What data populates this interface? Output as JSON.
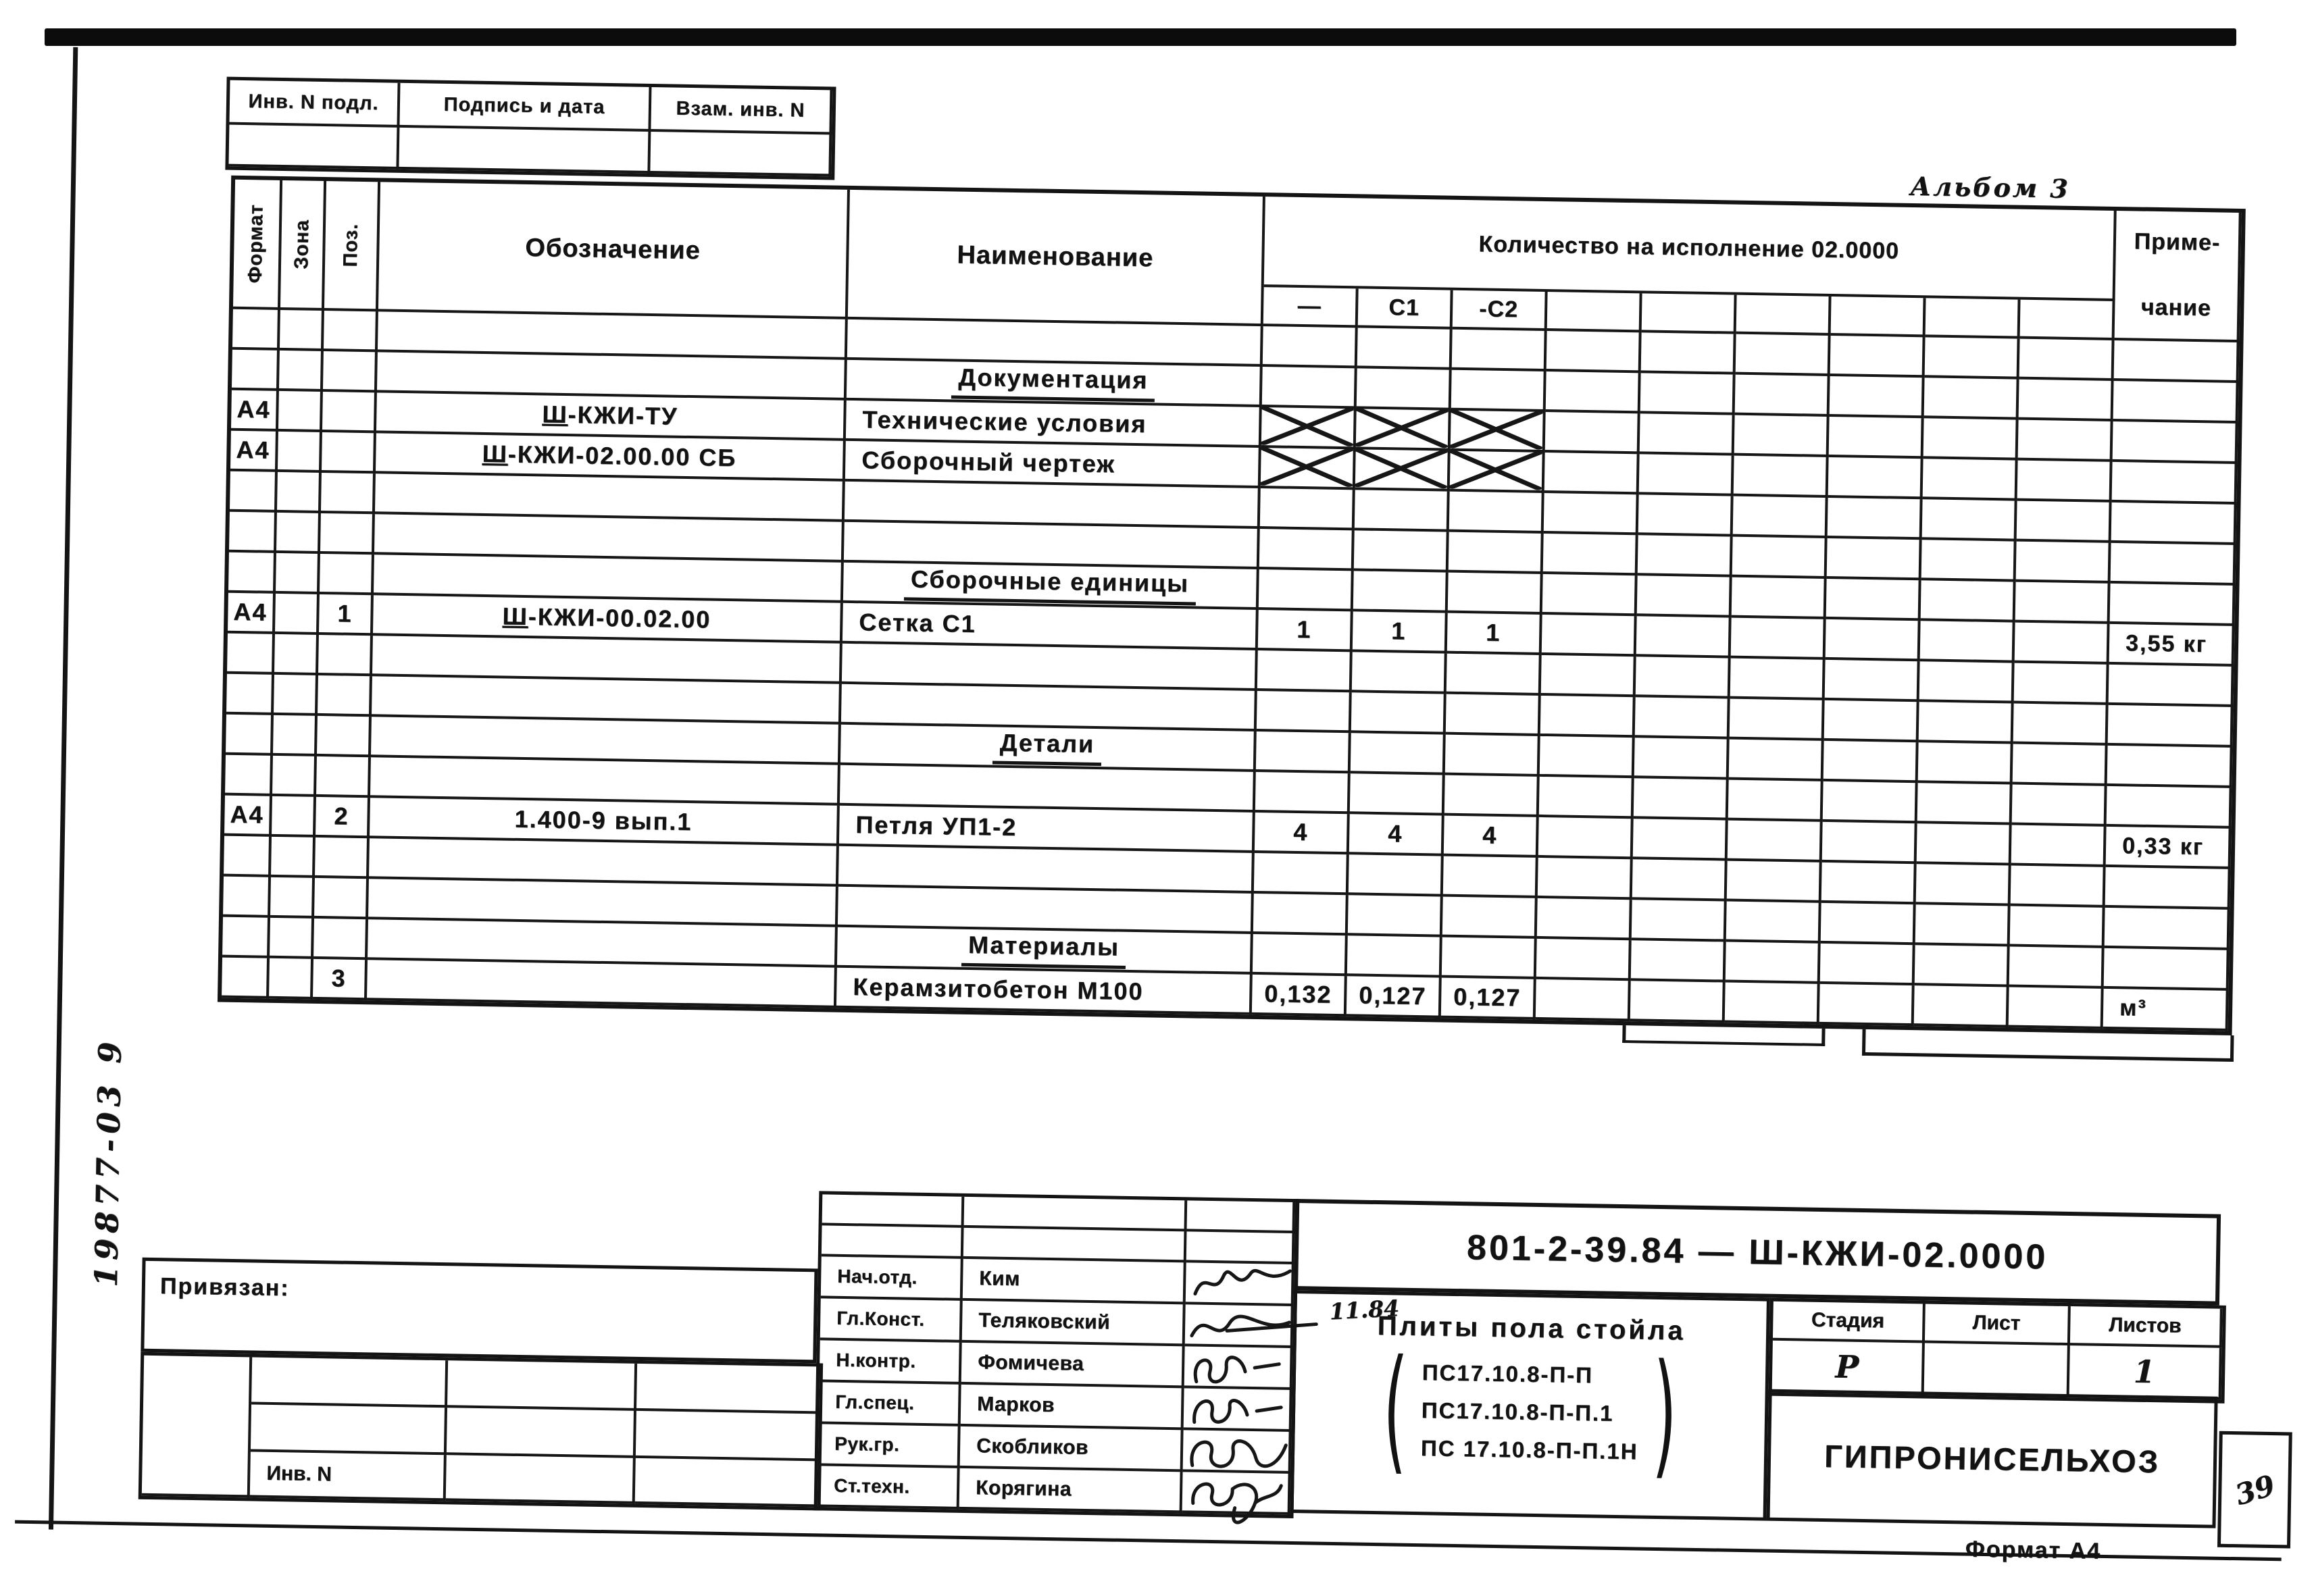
{
  "page": {
    "margin_note": "19877-03  9",
    "album_note": "Альбом 3",
    "format_note": "Формат А4",
    "corner_note": "39"
  },
  "inv_strip": {
    "cells": [
      "Инв. N подл.",
      "Подпись и дата",
      "Взам. инв. N"
    ]
  },
  "spec_table": {
    "headers": {
      "format": "Формат",
      "zone": "Зона",
      "pos": "Поз.",
      "designation": "Обозначение",
      "name": "Наименование",
      "quantity": "Количество на исполнение  02.0000",
      "qty_subcols": [
        "—",
        "С1",
        "-С2",
        "",
        "",
        "",
        "",
        "",
        ""
      ],
      "note_line1": "Приме-",
      "note_line2": "чание"
    },
    "rows": [
      {
        "type": "empty"
      },
      {
        "type": "section",
        "name": "Документация"
      },
      {
        "type": "item",
        "format": "А4",
        "zone": "",
        "pos": "",
        "designation": "Ш-КЖИ-ТУ",
        "name": "Технические условия",
        "qty": [
          "X",
          "X",
          "X",
          "",
          "",
          "",
          "",
          "",
          ""
        ],
        "note": ""
      },
      {
        "type": "item",
        "format": "А4",
        "zone": "",
        "pos": "",
        "designation": "Ш-КЖИ-02.00.00 СБ",
        "name": "Сборочный чертеж",
        "qty": [
          "X",
          "X",
          "X",
          "",
          "",
          "",
          "",
          "",
          ""
        ],
        "note": ""
      },
      {
        "type": "empty"
      },
      {
        "type": "empty"
      },
      {
        "type": "section",
        "name": "Сборочные единицы"
      },
      {
        "type": "item",
        "format": "А4",
        "zone": "",
        "pos": "1",
        "designation": "Ш-КЖИ-00.02.00",
        "name": "Сетка  С1",
        "qty": [
          "1",
          "1",
          "1",
          "",
          "",
          "",
          "",
          "",
          ""
        ],
        "note": "3,55 кг"
      },
      {
        "type": "empty"
      },
      {
        "type": "empty"
      },
      {
        "type": "section",
        "name": "Детали"
      },
      {
        "type": "empty"
      },
      {
        "type": "item",
        "format": "А4",
        "zone": "",
        "pos": "2",
        "designation": "1.400-9  вып.1",
        "name": "Петля  УП1-2",
        "qty": [
          "4",
          "4",
          "4",
          "",
          "",
          "",
          "",
          "",
          ""
        ],
        "note": "0,33 кг"
      },
      {
        "type": "empty"
      },
      {
        "type": "empty"
      },
      {
        "type": "section",
        "name": "Материалы"
      },
      {
        "type": "item",
        "format": "",
        "zone": "",
        "pos": "3",
        "designation": "",
        "name": "Керамзитобетон М100",
        "qty": [
          "0,132",
          "0,127",
          "0,127",
          "",
          "",
          "",
          "",
          "",
          ""
        ],
        "note": "м³"
      }
    ]
  },
  "title_block": {
    "binding_label": "Привязан:",
    "inv_label": "Инв. N",
    "signatures": [
      {
        "role": "Нач.отд.",
        "name": "Ким"
      },
      {
        "role": "Гл.Конст.",
        "name": "Теляковский"
      },
      {
        "role": "Н.контр.",
        "name": "Фомичева"
      },
      {
        "role": "Гл.спец.",
        "name": "Марков"
      },
      {
        "role": "Рук.гр.",
        "name": "Скобликов"
      },
      {
        "role": "Ст.техн.",
        "name": "Корягина"
      }
    ],
    "sig_date_note": "11.84",
    "doc_number": "801-2-39.84 — Ш-КЖИ-02.0000",
    "title": "Плиты пола стойла",
    "title_items": [
      "ПС17.10.8-П-П",
      "ПС17.10.8-П-П.1",
      "ПС 17.10.8-П-П.1Н"
    ],
    "stage_label": "Стадия",
    "sheet_label": "Лист",
    "sheets_label": "Листов",
    "stage_value": "Р",
    "sheet_value": "",
    "sheets_value": "1",
    "organization": "ГИПРОНИСЕЛЬХОЗ"
  }
}
